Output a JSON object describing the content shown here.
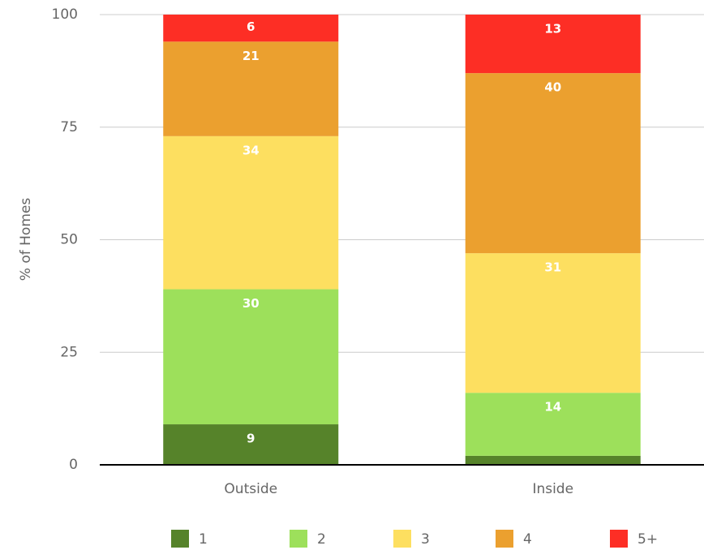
{
  "chart_data": {
    "type": "stacked-bar",
    "y_label": "% of Homes",
    "categories": [
      "Outside",
      "Inside"
    ],
    "series": [
      {
        "name": "1",
        "color": "#56832a",
        "values": [
          9,
          2
        ]
      },
      {
        "name": "2",
        "color": "#9de05b",
        "values": [
          30,
          14
        ]
      },
      {
        "name": "3",
        "color": "#fddf60",
        "values": [
          34,
          31
        ]
      },
      {
        "name": "4",
        "color": "#eba02f",
        "values": [
          21,
          40
        ]
      },
      {
        "name": "5+",
        "color": "#fd2e25",
        "values": [
          6,
          13
        ]
      }
    ],
    "ylim": [
      0,
      100
    ],
    "yticks": [
      0,
      25,
      50,
      75,
      100
    ],
    "grid": true,
    "legend": "bottom"
  }
}
